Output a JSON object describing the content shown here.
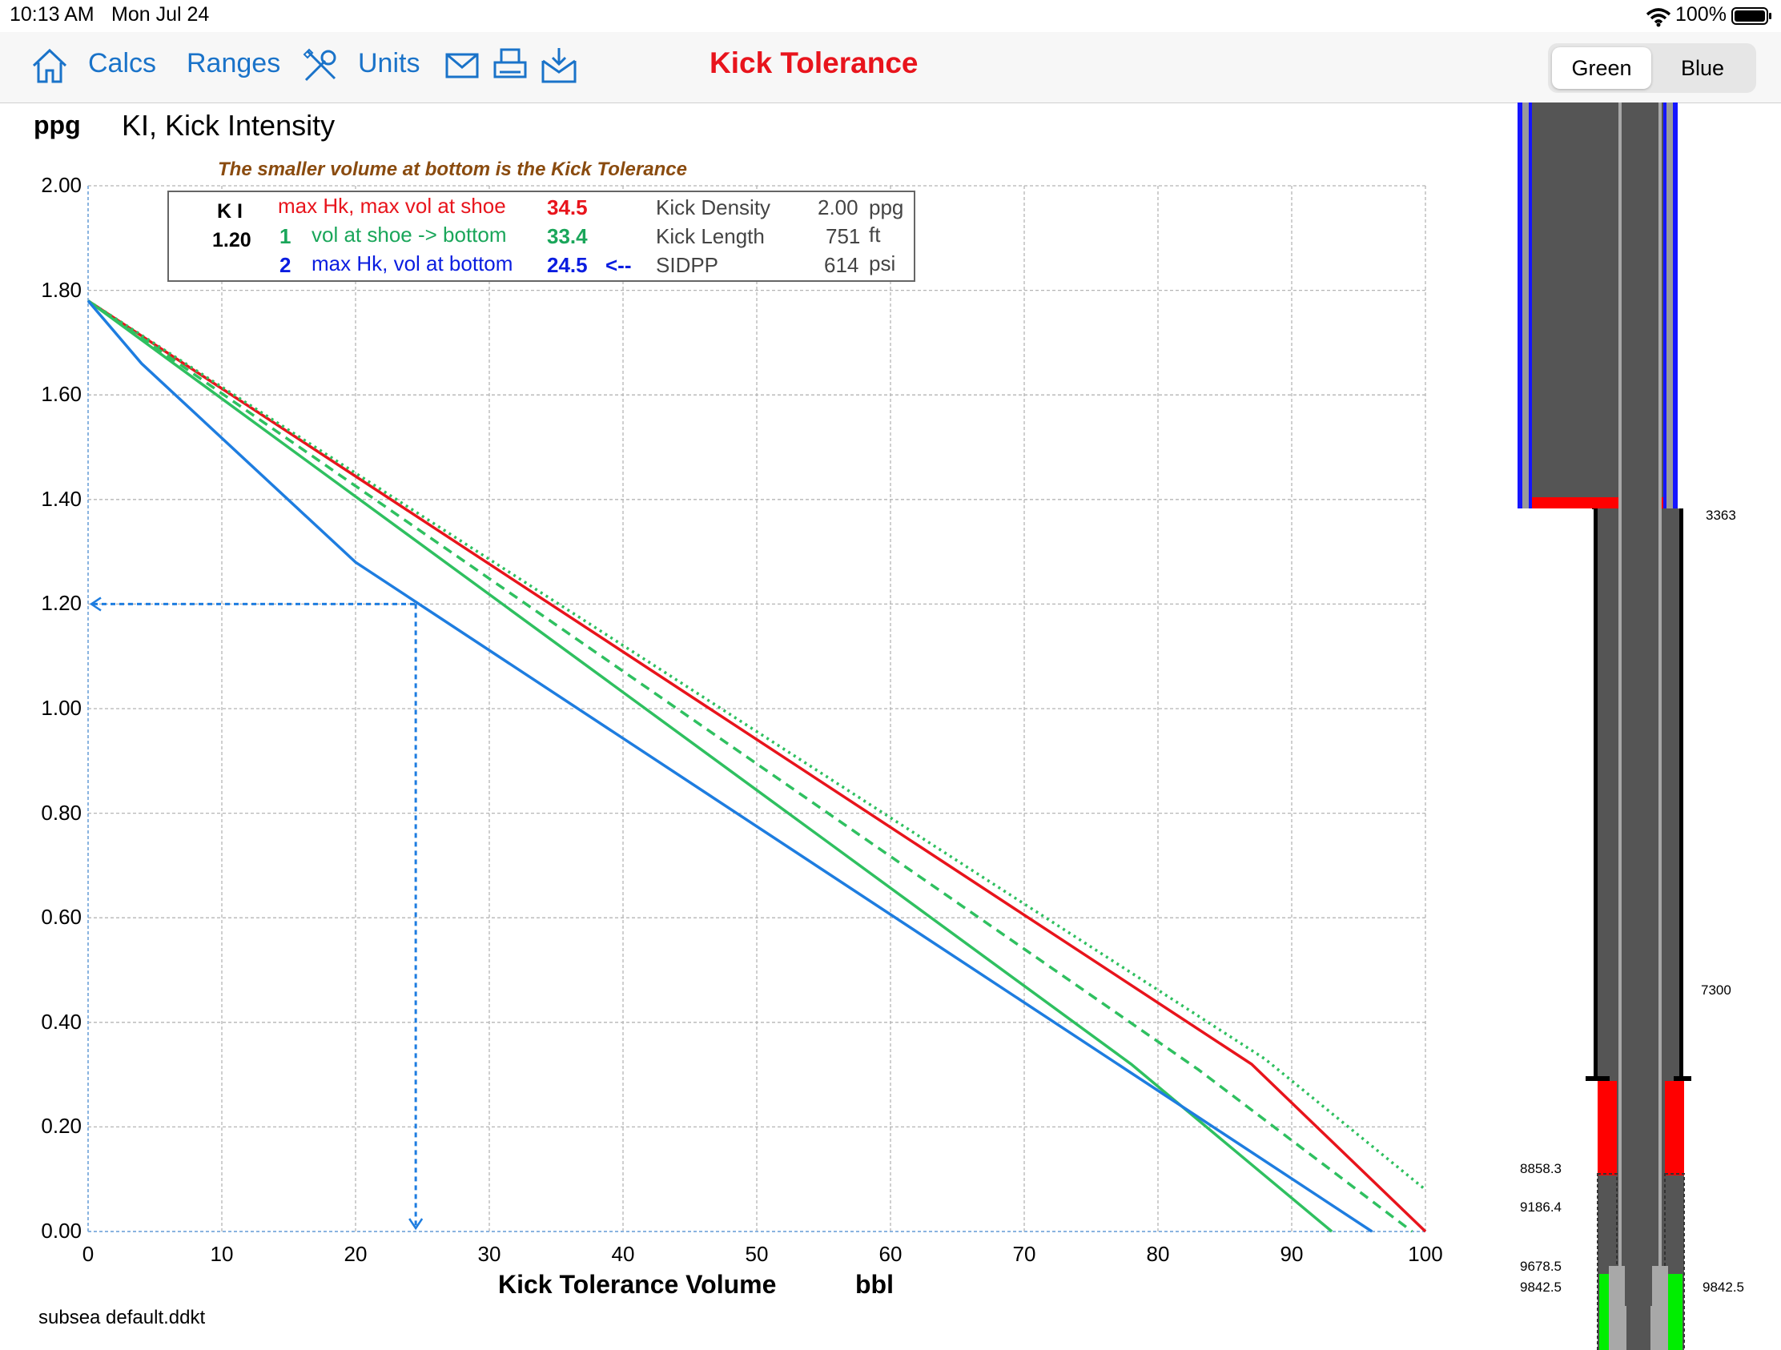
{
  "status": {
    "time": "10:13 AM",
    "date": "Mon Jul 24",
    "battery": "100%"
  },
  "nav": {
    "calcs": "Calcs",
    "ranges": "Ranges",
    "units": "Units",
    "title": "Kick Tolerance",
    "seg_selected": "Green",
    "seg_other": "Blue"
  },
  "chart_header": {
    "unit": "ppg",
    "title": "KI, Kick Intensity",
    "note": "The smaller volume at bottom is the Kick Tolerance"
  },
  "legend": {
    "ki_label": "K I",
    "ki_value": "1.20",
    "row0": {
      "label": "max Hk, max vol at shoe",
      "value": "34.5"
    },
    "row1": {
      "num": "1",
      "label": "vol at shoe -> bottom",
      "value": "33.4"
    },
    "row2": {
      "num": "2",
      "label": "max Hk, vol at bottom",
      "value": "24.5",
      "arrow": "<--"
    },
    "kick_density": {
      "label": "Kick Density",
      "value": "2.00",
      "unit": "ppg"
    },
    "kick_length": {
      "label": "Kick Length",
      "value": "751",
      "unit": "ft"
    },
    "sidpp": {
      "label": "SIDPP",
      "value": "614",
      "unit": "psi"
    }
  },
  "chart_data": {
    "type": "line",
    "xlabel": "Kick Tolerance Volume",
    "xunit": "bbl",
    "ylabel": "ppg",
    "xlim": [
      0,
      100
    ],
    "ylim": [
      0,
      2
    ],
    "x_ticks": [
      "0",
      "10",
      "20",
      "30",
      "40",
      "50",
      "60",
      "70",
      "80",
      "90",
      "100"
    ],
    "y_ticks": [
      "0.00",
      "0.20",
      "0.40",
      "0.60",
      "0.80",
      "1.00",
      "1.20",
      "1.40",
      "1.60",
      "1.80",
      "2.00"
    ],
    "grid": true,
    "series": [
      {
        "color": "#e8141c",
        "style": "solid",
        "points": [
          [
            0,
            1.78
          ],
          [
            87,
            0.32
          ],
          [
            100,
            0.0
          ]
        ]
      },
      {
        "color": "#2fc060",
        "style": "dotted",
        "points": [
          [
            0,
            1.78
          ],
          [
            88,
            0.33
          ],
          [
            100,
            0.08
          ]
        ]
      },
      {
        "color": "#2fc060",
        "style": "dashed",
        "points": [
          [
            0,
            1.78
          ],
          [
            83,
            0.31
          ],
          [
            99,
            0.0
          ]
        ]
      },
      {
        "color": "#2fc060",
        "style": "solid",
        "points": [
          [
            0,
            1.78
          ],
          [
            78,
            0.32
          ],
          [
            93,
            0.0
          ]
        ]
      },
      {
        "color": "#1e7de0",
        "style": "solid",
        "points": [
          [
            0,
            1.78
          ],
          [
            4,
            1.66
          ],
          [
            20,
            1.28
          ],
          [
            96,
            0.0
          ]
        ]
      }
    ],
    "marker": {
      "x": 24.5,
      "y": 1.2,
      "color": "#1e7de0"
    }
  },
  "wellbore": {
    "depth_shoe1": "3363",
    "depth_shoe2": "7300",
    "depths_left": [
      "8858.3",
      "9186.4",
      "9678.5",
      "9842.5"
    ],
    "depth_bottom_right": "9842.5"
  },
  "footer": {
    "file": "subsea default.ddkt"
  }
}
